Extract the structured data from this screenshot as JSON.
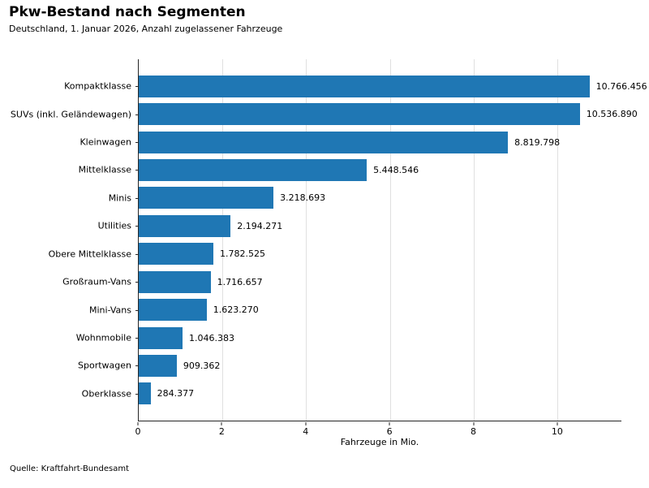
{
  "header": {
    "title": "Pkw-Bestand nach Segmenten",
    "subtitle": "Deutschland, 1. Januar 2026, Anzahl zugelassener Fahrzeuge"
  },
  "chart_data": {
    "type": "bar",
    "orientation": "horizontal",
    "title": "Pkw-Bestand nach Segmenten",
    "subtitle": "Deutschland, 1. Januar 2026, Anzahl zugelassener Fahrzeuge",
    "categories": [
      "Kompaktklasse",
      "SUVs (inkl. Geländewagen)",
      "Kleinwagen",
      "Mittelklasse",
      "Minis",
      "Utilities",
      "Obere Mittelklasse",
      "Großraum-Vans",
      "Mini-Vans",
      "Wohnmobile",
      "Sportwagen",
      "Oberklasse"
    ],
    "values": [
      10766456,
      10536890,
      8819798,
      5448546,
      3218693,
      2194271,
      1782525,
      1716657,
      1623270,
      1046383,
      909362,
      284377
    ],
    "value_labels": [
      "10.766.456",
      "10.536.890",
      "8.819.798",
      "5.448.546",
      "3.218.693",
      "2.194.271",
      "1.782.525",
      "1.716.657",
      "1.623.270",
      "1.046.383",
      "909.362",
      "284.377"
    ],
    "xlabel": "Fahrzeuge in Mio.",
    "x_tick_labels": [
      "0",
      "2",
      "4",
      "6",
      "8",
      "10"
    ],
    "x_tick_values_mio": [
      0,
      2,
      4,
      6,
      8,
      10
    ],
    "xlim_mio": [
      0,
      11.53
    ],
    "grid": "vertical gridlines at x ticks, light gray, behind bars",
    "legend": "none",
    "bar_color": "#1f77b4"
  },
  "footer": {
    "source": "Quelle: Kraftfahrt-Bundesamt"
  }
}
